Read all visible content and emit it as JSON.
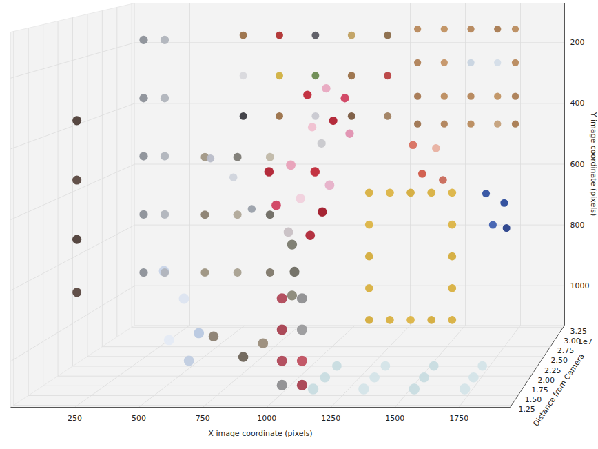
{
  "chart_data": {
    "type": "scatter3d",
    "xlabel": "X image coordinate (pixels)",
    "ylabel": "Y image coordinate (pixels)",
    "zlabel": "Distance from Camera",
    "z_offset_label": "1e7",
    "grid": true,
    "xlim": [
      0,
      1950
    ],
    "ylim": [
      70,
      1130
    ],
    "zlim": [
      12000000,
      33000000
    ],
    "xticks": [
      250,
      500,
      750,
      1000,
      1250,
      1500,
      1750
    ],
    "yticks": [
      200,
      400,
      600,
      800,
      1000
    ],
    "zticks": [
      {
        "value": 12500000,
        "label": "1.25"
      },
      {
        "value": 15000000,
        "label": "1.50"
      },
      {
        "value": 17500000,
        "label": "1.75"
      },
      {
        "value": 20000000,
        "label": "2.00"
      },
      {
        "value": 22500000,
        "label": "2.25"
      },
      {
        "value": 25000000,
        "label": "2.50"
      },
      {
        "value": 27500000,
        "label": "2.75"
      },
      {
        "value": 30000000,
        "label": "3.00"
      },
      {
        "value": 32500000,
        "label": "3.25"
      }
    ],
    "x": [
      1300,
      1420,
      1540,
      1660,
      1740,
      1300,
      1420,
      1540,
      1660,
      1740,
      1300,
      1420,
      1540,
      1660,
      1740,
      1300,
      1420,
      1540,
      1660,
      1740,
      560,
      720,
      880,
      1040,
      1200,
      560,
      720,
      880,
      1040,
      1200,
      560,
      720,
      880,
      1040,
      1200,
      1650,
      1730,
      1680,
      1740,
      460,
      560,
      640,
      1170,
      1260,
      1350,
      1440,
      1530,
      1170,
      1260,
      1350,
      1440,
      1530,
      1170,
      1170,
      1170,
      1530,
      1530,
      1530,
      1360,
      1460,
      1400,
      1490,
      480,
      620,
      760,
      480,
      620,
      760,
      480,
      620,
      760,
      240,
      330,
      240,
      330,
      240,
      330,
      240,
      330,
      240,
      330,
      940,
      1020,
      1100,
      960,
      1050,
      1120,
      1000,
      30,
      30,
      30,
      30,
      870,
      960,
      1060,
      1120,
      900,
      1000,
      1090,
      950,
      1040,
      1150,
      1350,
      1550,
      1750,
      1000,
      1010,
      1000,
      1150,
      1350,
      1550,
      1750,
      700,
      820,
      900,
      520,
      600,
      660,
      540,
      620,
      1010,
      1090,
      1010,
      1090,
      1010,
      1090,
      1010,
      1090,
      1150,
      1350,
      1550,
      1750
    ],
    "y": [
      150,
      150,
      150,
      150,
      150,
      260,
      260,
      260,
      260,
      260,
      370,
      370,
      370,
      370,
      370,
      460,
      460,
      460,
      460,
      460,
      160,
      160,
      160,
      160,
      160,
      290,
      290,
      290,
      290,
      290,
      420,
      420,
      420,
      420,
      420,
      660,
      690,
      760,
      770,
      540,
      600,
      700,
      640,
      640,
      640,
      640,
      640,
      1040,
      1040,
      1040,
      1040,
      1040,
      740,
      840,
      940,
      740,
      840,
      940,
      490,
      500,
      580,
      600,
      520,
      520,
      520,
      700,
      700,
      700,
      880,
      880,
      880,
      150,
      150,
      330,
      330,
      510,
      510,
      690,
      690,
      870,
      870,
      320,
      300,
      330,
      420,
      400,
      440,
      470,
      380,
      560,
      740,
      900,
      520,
      500,
      520,
      560,
      620,
      600,
      640,
      700,
      710,
      1100,
      1100,
      1100,
      1100,
      720,
      800,
      870,
      1100,
      1100,
      1100,
      1100,
      980,
      1040,
      1000,
      780,
      860,
      960,
      980,
      1040,
      850,
      850,
      940,
      940,
      1030,
      1030,
      1100,
      1100,
      1100,
      1100,
      1100,
      1100
    ],
    "z": [
      32000000,
      32000000,
      32000000,
      32000000,
      32000000,
      32000000,
      32000000,
      32000000,
      32000000,
      32000000,
      32000000,
      32000000,
      32000000,
      32000000,
      32000000,
      32000000,
      32000000,
      32000000,
      32000000,
      32000000,
      30000000,
      30000000,
      30000000,
      30000000,
      30000000,
      30000000,
      30000000,
      30000000,
      30000000,
      30000000,
      30000000,
      30000000,
      30000000,
      30000000,
      30000000,
      29000000,
      29000000,
      29000000,
      29000000,
      28000000,
      28000000,
      28000000,
      27000000,
      27000000,
      27000000,
      27000000,
      27000000,
      27000000,
      27000000,
      27000000,
      27000000,
      27000000,
      27000000,
      27000000,
      27000000,
      27000000,
      27000000,
      27000000,
      27000000,
      27000000,
      27000000,
      27000000,
      26000000,
      26000000,
      26000000,
      26000000,
      26000000,
      26000000,
      26000000,
      26000000,
      26000000,
      25000000,
      25000000,
      25000000,
      25000000,
      25000000,
      25000000,
      25000000,
      25000000,
      25000000,
      25000000,
      25000000,
      25000000,
      25000000,
      25000000,
      25000000,
      25000000,
      25000000,
      22000000,
      22000000,
      22000000,
      22000000,
      20000000,
      20000000,
      20000000,
      20000000,
      20000000,
      20000000,
      20000000,
      20000000,
      20000000,
      20000000,
      20000000,
      20000000,
      20000000,
      18000000,
      18000000,
      18000000,
      17000000,
      17000000,
      17000000,
      17000000,
      17000000,
      17000000,
      17000000,
      16000000,
      16000000,
      16000000,
      16000000,
      16000000,
      15000000,
      15000000,
      15000000,
      15000000,
      15000000,
      15000000,
      15000000,
      15000000,
      14000000,
      14000000,
      14000000,
      14000000
    ],
    "colors": [
      "#b8895c",
      "#c09060",
      "#b5865a",
      "#a87a50",
      "#bb8c5e",
      "#b08258",
      "#c49466",
      "#c8d4e0",
      "#d4dde8",
      "#b8895c",
      "#a67852",
      "#bc8c5e",
      "#b5865a",
      "#c09262",
      "#ab7d54",
      "#9e7450",
      "#b08258",
      "#b88a5c",
      "#c4a07a",
      "#a87a50",
      "#9a7048",
      "#b03030",
      "#5a5a62",
      "#c0a060",
      "#8a6a48",
      "#d8d8dc",
      "#d0b040",
      "#6a8a50",
      "#9a7048",
      "#b84040",
      "#3a3a40",
      "#9a7048",
      "#c8c8d0",
      "#7a5a40",
      "#a08060",
      "#3050a0",
      "#2a4a9a",
      "#4060b0",
      "#28408a",
      "#b8bcc8",
      "#d0d4dc",
      "#9aa0aa",
      "#d8b040",
      "#dcb444",
      "#d4ac3c",
      "#d8b040",
      "#dcb444",
      "#d4ac3c",
      "#d8b040",
      "#dcb444",
      "#d4ac3c",
      "#d8b040",
      "#dcb444",
      "#d4ac3c",
      "#d8b040",
      "#dcb444",
      "#d4ac3c",
      "#d8b040",
      "#d87060",
      "#e8b0a0",
      "#d05848",
      "#c86858",
      "#a09684",
      "#7c7a74",
      "#c0b8a8",
      "#8a8070",
      "#b0a898",
      "#6e6a62",
      "#9c9280",
      "#a8a090",
      "#80786a",
      "#8c9098",
      "#b0b4bc",
      "#8c9098",
      "#b0b4bc",
      "#8c9098",
      "#b0b4bc",
      "#8c9098",
      "#b0b4bc",
      "#8c9098",
      "#b0b4bc",
      "#c02838",
      "#e8a8c0",
      "#d04060",
      "#f0c0d0",
      "#b02030",
      "#e090b0",
      "#c8c8cc",
      "#4e3e38",
      "#5a4840",
      "#4e3e38",
      "#5a4840",
      "#b02030",
      "#e8a0b8",
      "#c02838",
      "#e6b0c8",
      "#d04060",
      "#f0d0dc",
      "#a01828",
      "#c8c0c4",
      "#b02838",
      "#c8dce0",
      "#d4e4e8",
      "#c8dce0",
      "#d4e4e8",
      "#7a7a6e",
      "#6e6c62",
      "#8a8878",
      "#c8dce0",
      "#d4e4e8",
      "#c8dce0",
      "#d4e4e8",
      "#8a7e70",
      "#6e6458",
      "#9a8c7a",
      "#c8d4e8",
      "#dce4f0",
      "#b8c8e0",
      "#e4eaf4",
      "#c0cce0",
      "#b04858",
      "#8e8e90",
      "#a84050",
      "#9a9a9c",
      "#b04858",
      "#c05060",
      "#8e8e90",
      "#a84050",
      "#c8dce0",
      "#d4e4e8",
      "#c8dce0",
      "#d4e4e8"
    ]
  }
}
